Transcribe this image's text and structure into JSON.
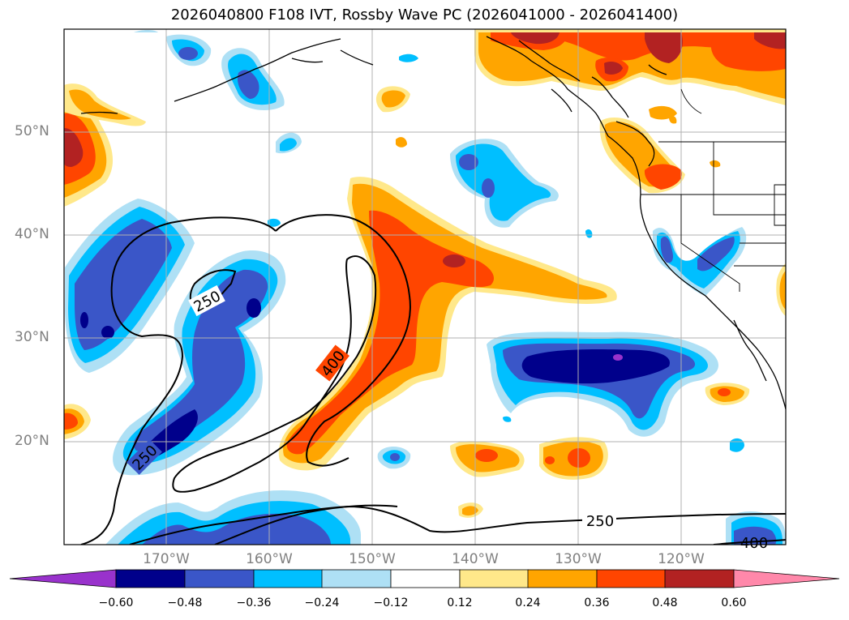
{
  "title": "2026040800 F108 IVT, Rossby Wave PC (2026041000 - 2026041400)",
  "lat_labels": [
    "50°N",
    "40°N",
    "30°N",
    "20°N"
  ],
  "lon_labels": [
    "170°W",
    "160°W",
    "150°W",
    "140°W",
    "130°W",
    "120°W"
  ],
  "contour_labels": [
    "250",
    "400",
    "250",
    "250",
    "400"
  ],
  "colorbar": {
    "ticks": [
      "−0.60",
      "−0.48",
      "−0.36",
      "−0.24",
      "−0.12",
      "0.12",
      "0.24",
      "0.36",
      "0.48",
      "0.60"
    ],
    "colors": [
      "#9932cc",
      "#00008b",
      "#3a56c8",
      "#00bfff",
      "#aee0f5",
      "#ffffff",
      "#ffe88a",
      "#ffa500",
      "#ff4500",
      "#b22222",
      "#ff88aa"
    ]
  },
  "palette": {
    "coast": "#000000",
    "grid": "#b0b0b0",
    "contour": "#000000"
  }
}
